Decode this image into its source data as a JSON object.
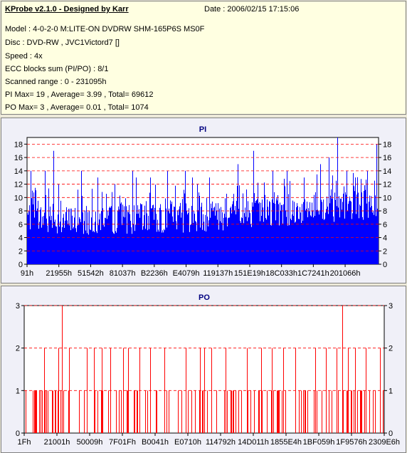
{
  "header": {
    "title": "KProbe v2.1.0 - Designed by Karr",
    "date": "Date : 2006/02/15 17:15:06",
    "model": "Model : 4-0-2-0 M:LITE-ON DVDRW SHM-165P6S MS0F",
    "disc": "Disc : DVD-RW , JVC1Victord7 []",
    "speed": "Speed : 4x",
    "ecc": "ECC blocks sum (PI/PO) : 8/1",
    "range": "Scanned range : 0 - 231095h",
    "pi_stats": "PI Max= 19 , Average= 3.99 , Total= 69612",
    "po_stats": "PO Max= 3 , Average= 0.01 , Total= 1074"
  },
  "colors": {
    "pi_bar": "#0000ff",
    "po_bar": "#ff0000",
    "grid": "#ff0000",
    "plot_bg": "#ffffff",
    "title": "#000080"
  },
  "chart_data": [
    {
      "type": "bar",
      "title": "PI",
      "ylim": [
        0,
        19
      ],
      "yticks": [
        0,
        2,
        4,
        6,
        8,
        10,
        12,
        14,
        16,
        18
      ],
      "xtick_labels": [
        "91h",
        "21955h",
        "51542h",
        "81037h",
        "B2236h",
        "E4079h",
        "119137h",
        "151E19h",
        "18C033h",
        "1C7241h",
        "201066h"
      ],
      "grid": true,
      "baseline_values": [
        7.5,
        7.2,
        7.0,
        6.9,
        6.8,
        6.8,
        6.8,
        6.9,
        6.9,
        7.0,
        7.0,
        7.0,
        7.0,
        7.0,
        7.1,
        7.1,
        7.1,
        7.2,
        7.2,
        7.3,
        7.4,
        7.5,
        7.6,
        7.7,
        7.8,
        7.9,
        8.0,
        8.1,
        8.2,
        8.3,
        8.4,
        8.5,
        8.6,
        8.7,
        8.8,
        8.9,
        9.0,
        9.1,
        9.3,
        9.5
      ],
      "peaks": [
        {
          "pos": 0.01,
          "value": 14
        },
        {
          "pos": 0.05,
          "value": 14
        },
        {
          "pos": 0.075,
          "value": 17
        },
        {
          "pos": 0.09,
          "value": 12
        },
        {
          "pos": 0.155,
          "value": 14
        },
        {
          "pos": 0.2,
          "value": 13
        },
        {
          "pos": 0.25,
          "value": 12
        },
        {
          "pos": 0.3,
          "value": 14
        },
        {
          "pos": 0.31,
          "value": 13
        },
        {
          "pos": 0.35,
          "value": 13
        },
        {
          "pos": 0.4,
          "value": 14
        },
        {
          "pos": 0.45,
          "value": 14
        },
        {
          "pos": 0.47,
          "value": 13
        },
        {
          "pos": 0.52,
          "value": 13
        },
        {
          "pos": 0.6,
          "value": 15
        },
        {
          "pos": 0.645,
          "value": 17
        },
        {
          "pos": 0.7,
          "value": 14
        },
        {
          "pos": 0.74,
          "value": 14
        },
        {
          "pos": 0.79,
          "value": 13
        },
        {
          "pos": 0.835,
          "value": 15
        },
        {
          "pos": 0.86,
          "value": 16
        },
        {
          "pos": 0.885,
          "value": 19
        },
        {
          "pos": 0.91,
          "value": 14
        },
        {
          "pos": 0.935,
          "value": 13
        },
        {
          "pos": 0.97,
          "value": 14
        },
        {
          "pos": 0.995,
          "value": 18
        }
      ]
    },
    {
      "type": "bar",
      "title": "PO",
      "ylim": [
        0,
        3
      ],
      "yticks": [
        0,
        1,
        2,
        3
      ],
      "xtick_labels": [
        "1Fh",
        "21001h",
        "50009h",
        "7F01Fh",
        "B0041h",
        "E0710h",
        "114792h",
        "14D011h",
        "1855E4h",
        "1BF059h",
        "1F9576h",
        "2309E6h"
      ],
      "grid": true,
      "spikes_value_3": [
        0.105,
        0.885
      ],
      "spikes_value_2": [
        0.055,
        0.095,
        0.125,
        0.175,
        0.195,
        0.215,
        0.24,
        0.275,
        0.29,
        0.32,
        0.35,
        0.39,
        0.45,
        0.49,
        0.5,
        0.52,
        0.56,
        0.62,
        0.66,
        0.69,
        0.72,
        0.755,
        0.81,
        0.84,
        0.87,
        0.9,
        0.92,
        0.95,
        0.99
      ],
      "spikes_value_1_density": 0.42
    }
  ]
}
